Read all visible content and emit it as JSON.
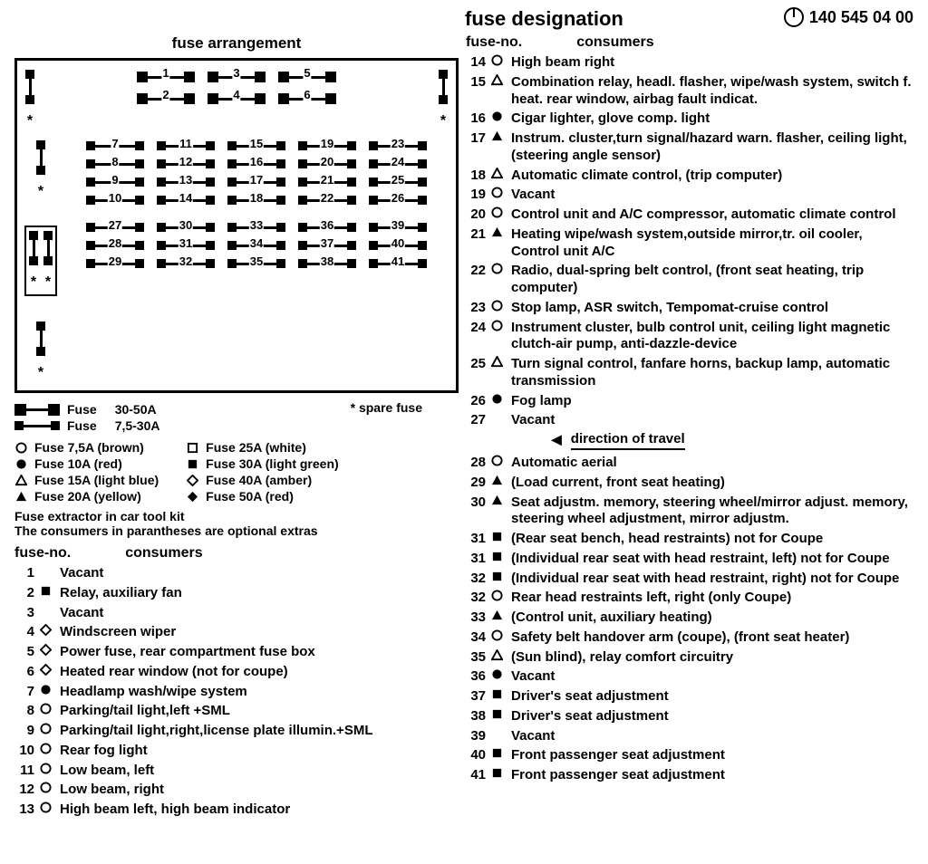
{
  "title": "fuse designation",
  "part_number": "140 545 04 00",
  "arrangement_title": "fuse arrangement",
  "fusebox": {
    "top_large_rows": [
      [
        1,
        3,
        5
      ],
      [
        2,
        4,
        6
      ]
    ],
    "group_rows": [
      [
        7,
        11,
        15,
        19,
        23
      ],
      [
        8,
        12,
        16,
        20,
        24
      ],
      [
        9,
        13,
        17,
        21,
        25
      ],
      [
        10,
        14,
        18,
        22,
        26
      ],
      [
        27,
        30,
        33,
        36,
        39
      ],
      [
        28,
        31,
        34,
        37,
        40
      ],
      [
        29,
        32,
        35,
        38,
        41
      ]
    ],
    "spare_label": "* spare fuse"
  },
  "legend_sizes": [
    {
      "label": "Fuse",
      "range": "30-50A",
      "big": true
    },
    {
      "label": "Fuse",
      "range": "7,5-30A",
      "big": false
    }
  ],
  "color_legend_left": [
    {
      "shape": "circle-open",
      "label": "Fuse 7,5A (brown)"
    },
    {
      "shape": "circle-filled",
      "label": "Fuse 10A (red)"
    },
    {
      "shape": "triangle-open",
      "label": "Fuse 15A (light blue)"
    },
    {
      "shape": "triangle-filled",
      "label": "Fuse 20A (yellow)"
    }
  ],
  "color_legend_right": [
    {
      "shape": "square-open",
      "label": "Fuse 25A (white)"
    },
    {
      "shape": "square-filled",
      "label": "Fuse 30A (light green)"
    },
    {
      "shape": "diamond-open",
      "label": "Fuse 40A (amber)"
    },
    {
      "shape": "diamond-filled",
      "label": "Fuse 50A (red)"
    }
  ],
  "notes": [
    "Fuse extractor in car tool kit",
    "The consumers in parantheses are optional extras"
  ],
  "list_head_no": "fuse-no.",
  "list_head_cons": "consumers",
  "direction_label": "direction of travel",
  "left_list": [
    {
      "no": "1",
      "shape": "",
      "desc": "Vacant"
    },
    {
      "no": "2",
      "shape": "square-filled",
      "desc": "Relay, auxiliary fan"
    },
    {
      "no": "3",
      "shape": "",
      "desc": "Vacant"
    },
    {
      "no": "4",
      "shape": "diamond-open",
      "desc": "Windscreen wiper"
    },
    {
      "no": "5",
      "shape": "diamond-open",
      "desc": "Power fuse, rear compartment fuse box"
    },
    {
      "no": "6",
      "shape": "diamond-open",
      "desc": "Heated rear window (not for coupe)"
    },
    {
      "no": "7",
      "shape": "circle-filled",
      "desc": "Headlamp wash/wipe system"
    },
    {
      "no": "8",
      "shape": "circle-open",
      "desc": "Parking/tail light,left +SML"
    },
    {
      "no": "9",
      "shape": "circle-open",
      "desc": "Parking/tail light,right,license plate illumin.+SML"
    },
    {
      "no": "10",
      "shape": "circle-open",
      "desc": "Rear fog light"
    },
    {
      "no": "11",
      "shape": "circle-open",
      "desc": "Low beam, left"
    },
    {
      "no": "12",
      "shape": "circle-open",
      "desc": "Low beam, right"
    },
    {
      "no": "13",
      "shape": "circle-open",
      "desc": "High beam left, high beam indicator"
    }
  ],
  "right_list": [
    {
      "no": "14",
      "shape": "circle-open",
      "desc": "High beam right"
    },
    {
      "no": "15",
      "shape": "triangle-open",
      "desc": "Combination relay, headl. flasher, wipe/wash system, switch f. heat. rear window, airbag fault indicat."
    },
    {
      "no": "16",
      "shape": "circle-filled",
      "desc": "Cigar lighter, glove comp. light"
    },
    {
      "no": "17",
      "shape": "triangle-filled",
      "desc": "Instrum. cluster,turn signal/hazard warn. flasher, ceiling light, (steering angle sensor)"
    },
    {
      "no": "18",
      "shape": "triangle-open",
      "desc": "Automatic climate control, (trip computer)"
    },
    {
      "no": "19",
      "shape": "circle-open",
      "desc": "Vacant"
    },
    {
      "no": "20",
      "shape": "circle-open",
      "desc": "Control unit and A/C compressor, automatic climate control"
    },
    {
      "no": "21",
      "shape": "triangle-filled",
      "desc": "Heating wipe/wash system,outside mirror,tr. oil cooler, Control unit A/C"
    },
    {
      "no": "22",
      "shape": "circle-open",
      "desc": "Radio, dual-spring belt control, (front seat heating, trip computer)"
    },
    {
      "no": "23",
      "shape": "circle-open",
      "desc": "Stop lamp, ASR switch, Tempomat-cruise control"
    },
    {
      "no": "24",
      "shape": "circle-open",
      "desc": "Instrument cluster, bulb control unit, ceiling light magnetic clutch-air pump, anti-dazzle-device"
    },
    {
      "no": "25",
      "shape": "triangle-open",
      "desc": "Turn signal control, fanfare horns, backup lamp, automatic transmission"
    },
    {
      "no": "26",
      "shape": "circle-filled",
      "desc": "Fog lamp"
    },
    {
      "no": "27",
      "shape": "",
      "desc": "Vacant",
      "arrow": true
    },
    {
      "no": "28",
      "shape": "circle-open",
      "desc": "Automatic aerial"
    },
    {
      "no": "29",
      "shape": "triangle-filled",
      "desc": "(Load current, front seat heating)"
    },
    {
      "no": "30",
      "shape": "triangle-filled",
      "desc": "Seat adjustm. memory, steering wheel/mirror adjust. memory, steering wheel adjustment, mirror adjustm."
    },
    {
      "no": "31",
      "shape": "square-filled",
      "desc": "(Rear seat bench, head restraints) not for Coupe"
    },
    {
      "no": "31",
      "shape": "square-filled",
      "desc": "(Individual rear seat with head restraint, left) not for Coupe"
    },
    {
      "no": "32",
      "shape": "square-filled",
      "desc": "(Individual rear seat with head restraint, right) not for Coupe"
    },
    {
      "no": "32",
      "shape": "circle-open",
      "desc": "Rear head restraints left, right (only Coupe)"
    },
    {
      "no": "33",
      "shape": "triangle-filled",
      "desc": "(Control unit, auxiliary heating)"
    },
    {
      "no": "34",
      "shape": "circle-open",
      "desc": "Safety belt handover arm (coupe), (front seat heater)"
    },
    {
      "no": "35",
      "shape": "triangle-open",
      "desc": "(Sun blind), relay comfort circuitry"
    },
    {
      "no": "36",
      "shape": "circle-filled",
      "desc": "Vacant"
    },
    {
      "no": "37",
      "shape": "square-filled",
      "desc": "Driver's seat adjustment"
    },
    {
      "no": "38",
      "shape": "square-filled",
      "desc": "Driver's seat adjustment"
    },
    {
      "no": "39",
      "shape": "",
      "desc": "Vacant"
    },
    {
      "no": "40",
      "shape": "square-filled",
      "desc": "Front passenger seat adjustment"
    },
    {
      "no": "41",
      "shape": "square-filled",
      "desc": "Front passenger seat adjustment"
    }
  ]
}
